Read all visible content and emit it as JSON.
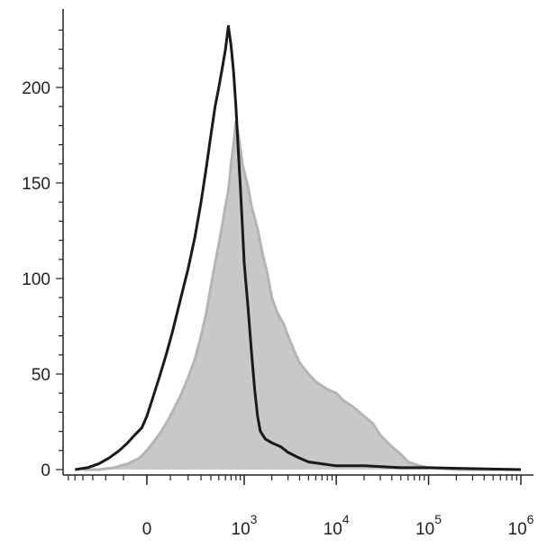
{
  "chart_data": {
    "type": "area",
    "title": "",
    "xlabel": "",
    "ylabel": "",
    "x_scale": "biexponential",
    "ylim": [
      0,
      240
    ],
    "y_ticks": [
      {
        "value": 0,
        "label": "0"
      },
      {
        "value": 50,
        "label": "50"
      },
      {
        "value": 100,
        "label": "100"
      },
      {
        "value": 150,
        "label": "150"
      },
      {
        "value": 200,
        "label": "200"
      }
    ],
    "x_ticks": [
      {
        "value": 0,
        "base": "0",
        "exp": ""
      },
      {
        "value": 1000,
        "base": "10",
        "exp": "3"
      },
      {
        "value": 10000,
        "base": "10",
        "exp": "4"
      },
      {
        "value": 100000,
        "base": "10",
        "exp": "5"
      },
      {
        "value": 1000000,
        "base": "10",
        "exp": "6"
      }
    ],
    "grid": false,
    "legend": "none",
    "series": [
      {
        "style": "filled",
        "color": "#c8c8c8",
        "stroke": "#b4b4b4",
        "points": [
          [
            -400,
            0
          ],
          [
            -250,
            0
          ],
          [
            -150,
            1
          ],
          [
            -80,
            3
          ],
          [
            -30,
            6
          ],
          [
            0,
            10
          ],
          [
            30,
            15
          ],
          [
            60,
            20
          ],
          [
            100,
            28
          ],
          [
            150,
            38
          ],
          [
            200,
            48
          ],
          [
            250,
            58
          ],
          [
            300,
            70
          ],
          [
            350,
            82
          ],
          [
            400,
            96
          ],
          [
            450,
            108
          ],
          [
            500,
            118
          ],
          [
            550,
            128
          ],
          [
            600,
            138
          ],
          [
            650,
            146
          ],
          [
            700,
            160
          ],
          [
            750,
            170
          ],
          [
            800,
            182
          ],
          [
            850,
            176
          ],
          [
            900,
            168
          ],
          [
            950,
            160
          ],
          [
            1000,
            156
          ],
          [
            1100,
            148
          ],
          [
            1200,
            138
          ],
          [
            1400,
            126
          ],
          [
            1600,
            112
          ],
          [
            1800,
            102
          ],
          [
            2000,
            90
          ],
          [
            2300,
            82
          ],
          [
            2700,
            76
          ],
          [
            3000,
            70
          ],
          [
            3500,
            62
          ],
          [
            4000,
            56
          ],
          [
            5000,
            50
          ],
          [
            6000,
            46
          ],
          [
            8000,
            42
          ],
          [
            10000,
            40
          ],
          [
            12000,
            36
          ],
          [
            15000,
            33
          ],
          [
            20000,
            28
          ],
          [
            25000,
            24
          ],
          [
            30000,
            18
          ],
          [
            40000,
            12
          ],
          [
            50000,
            8
          ],
          [
            60000,
            4
          ],
          [
            80000,
            2
          ],
          [
            100000,
            1
          ],
          [
            200000,
            0
          ],
          [
            1000000,
            0
          ]
        ]
      },
      {
        "style": "line",
        "color": "#1a1a1a",
        "points": [
          [
            -500,
            0
          ],
          [
            -350,
            1
          ],
          [
            -250,
            3
          ],
          [
            -180,
            6
          ],
          [
            -120,
            10
          ],
          [
            -80,
            14
          ],
          [
            -50,
            18
          ],
          [
            -20,
            22
          ],
          [
            0,
            28
          ],
          [
            20,
            36
          ],
          [
            50,
            48
          ],
          [
            80,
            60
          ],
          [
            110,
            72
          ],
          [
            150,
            88
          ],
          [
            200,
            105
          ],
          [
            250,
            122
          ],
          [
            300,
            140
          ],
          [
            350,
            158
          ],
          [
            400,
            175
          ],
          [
            450,
            190
          ],
          [
            500,
            200
          ],
          [
            550,
            210
          ],
          [
            600,
            220
          ],
          [
            650,
            232
          ],
          [
            700,
            222
          ],
          [
            750,
            208
          ],
          [
            800,
            190
          ],
          [
            850,
            168
          ],
          [
            900,
            148
          ],
          [
            950,
            128
          ],
          [
            1000,
            108
          ],
          [
            1100,
            85
          ],
          [
            1200,
            62
          ],
          [
            1300,
            42
          ],
          [
            1400,
            28
          ],
          [
            1500,
            20
          ],
          [
            1700,
            16
          ],
          [
            2000,
            14
          ],
          [
            2500,
            12
          ],
          [
            3000,
            9
          ],
          [
            4000,
            6
          ],
          [
            5000,
            4
          ],
          [
            7000,
            3
          ],
          [
            10000,
            2
          ],
          [
            20000,
            2
          ],
          [
            50000,
            1
          ],
          [
            100000,
            1
          ],
          [
            1000000,
            0
          ]
        ]
      }
    ]
  }
}
